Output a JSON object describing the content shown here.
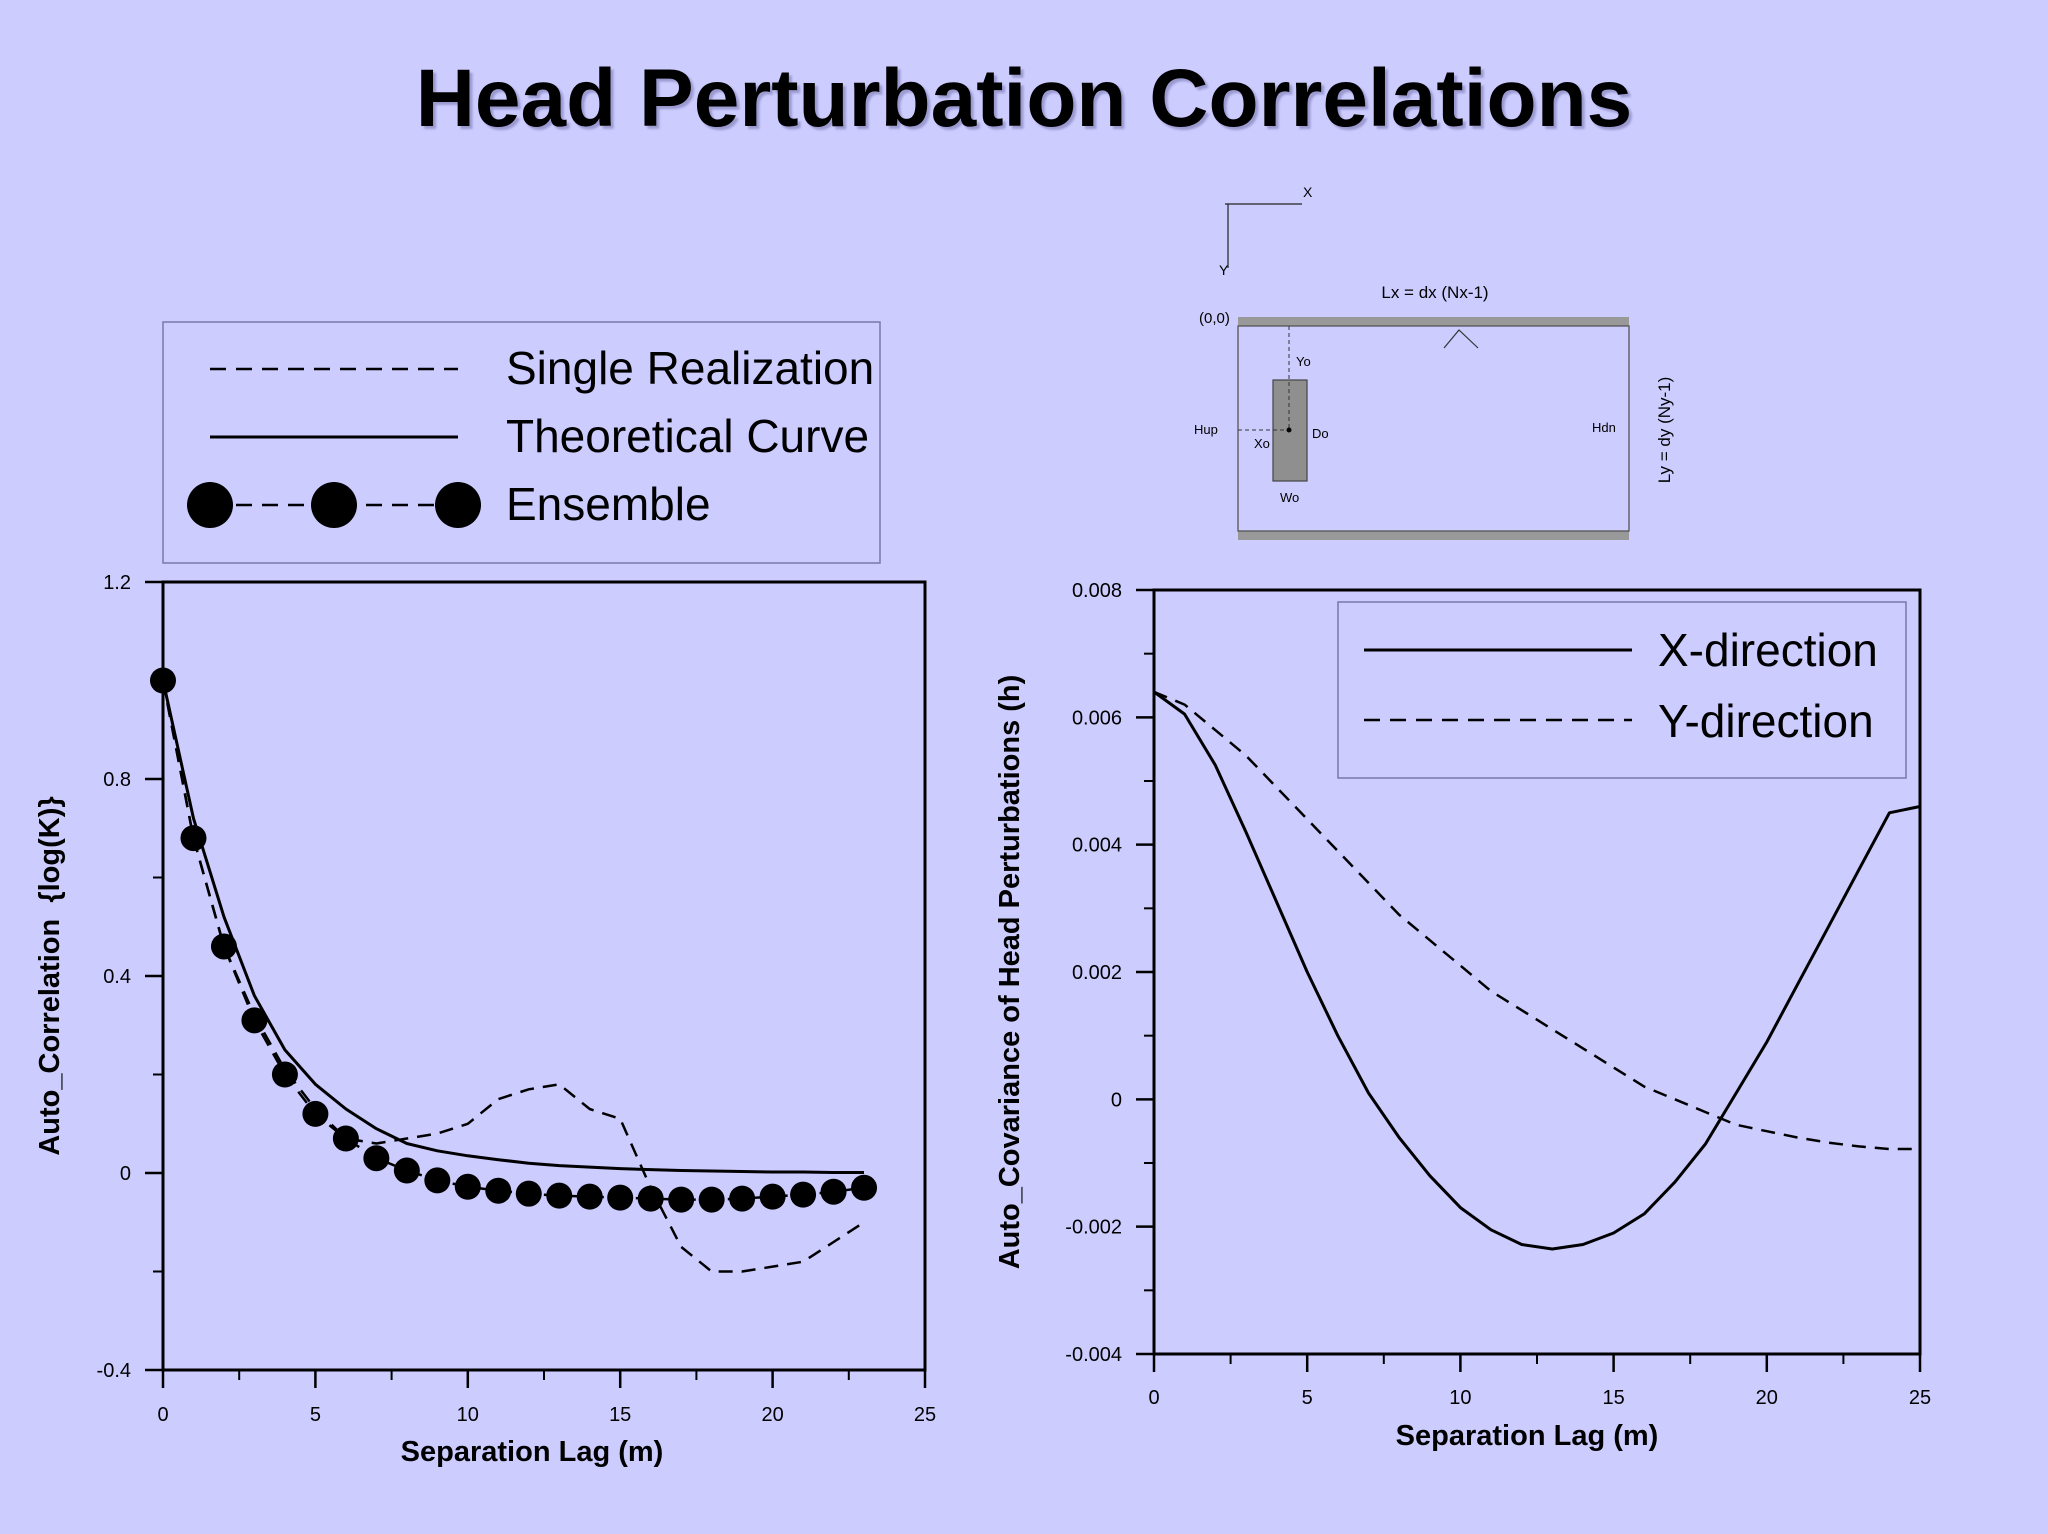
{
  "title": "Head Perturbation Correlations",
  "diagram": {
    "axis_x": "X",
    "axis_y": "Y",
    "length_x": "Lx = dx (Nx-1)",
    "length_y": "Ly = dy (Ny-1)",
    "origin": "(0,0)",
    "yo": "Yo",
    "hup": "Hup",
    "xo": "Xo",
    "do": "Do",
    "hdn": "Hdn",
    "wo": "Wo"
  },
  "chart_data": [
    {
      "type": "line",
      "xlabel": "Separation Lag (m)",
      "ylabel": "Auto_Correlation  {log(K)}",
      "xlim": [
        0,
        25
      ],
      "ylim": [
        -0.4,
        1.2
      ],
      "xticks": [
        "0",
        "5",
        "10",
        "15",
        "20",
        "25"
      ],
      "yticks": [
        "-0.4",
        "0",
        "0.4",
        "0.8",
        "1.2"
      ],
      "legend_position": "top-outside",
      "series": [
        {
          "name": "Single Realization",
          "style": "dashed",
          "x": [
            0,
            1,
            2,
            3,
            4,
            5,
            6,
            7,
            8,
            9,
            10,
            11,
            12,
            13,
            14,
            15,
            16,
            17,
            18,
            19,
            20,
            21,
            22,
            23
          ],
          "y": [
            1.0,
            0.68,
            0.46,
            0.32,
            0.21,
            0.13,
            0.07,
            0.06,
            0.07,
            0.08,
            0.1,
            0.15,
            0.17,
            0.18,
            0.13,
            0.11,
            -0.03,
            -0.15,
            -0.2,
            -0.2,
            -0.19,
            -0.18,
            -0.14,
            -0.1
          ]
        },
        {
          "name": "Theoretical Curve",
          "style": "solid",
          "x": [
            0,
            1,
            2,
            3,
            4,
            5,
            6,
            7,
            8,
            9,
            10,
            11,
            12,
            13,
            14,
            15,
            16,
            17,
            18,
            19,
            20,
            21,
            22,
            23
          ],
          "y": [
            1.0,
            0.72,
            0.52,
            0.36,
            0.25,
            0.18,
            0.13,
            0.09,
            0.06,
            0.045,
            0.035,
            0.027,
            0.02,
            0.015,
            0.012,
            0.009,
            0.007,
            0.005,
            0.004,
            0.003,
            0.002,
            0.002,
            0.001,
            0.001
          ]
        },
        {
          "name": "Ensemble",
          "style": "dashed-markers",
          "x": [
            0,
            1,
            2,
            3,
            4,
            5,
            6,
            7,
            8,
            9,
            10,
            11,
            12,
            13,
            14,
            15,
            16,
            17,
            18,
            19,
            20,
            21,
            22,
            23
          ],
          "y": [
            1.0,
            0.68,
            0.46,
            0.31,
            0.2,
            0.12,
            0.07,
            0.03,
            0.005,
            -0.015,
            -0.028,
            -0.036,
            -0.042,
            -0.046,
            -0.048,
            -0.05,
            -0.052,
            -0.054,
            -0.054,
            -0.052,
            -0.048,
            -0.044,
            -0.038,
            -0.03
          ]
        }
      ]
    },
    {
      "type": "line",
      "xlabel": "Separation Lag (m)",
      "ylabel": "Auto_Covariance of Head Perturbations (h)",
      "xlim": [
        0,
        25
      ],
      "ylim": [
        -0.004,
        0.008
      ],
      "xticks": [
        "0",
        "5",
        "10",
        "15",
        "20",
        "25"
      ],
      "yticks": [
        "-0.004",
        "-0.002",
        "0",
        "0.002",
        "0.004",
        "0.006",
        "0.008"
      ],
      "legend_position": "top-right",
      "series": [
        {
          "name": "X-direction",
          "style": "solid",
          "x": [
            0,
            1,
            2,
            3,
            4,
            5,
            6,
            7,
            8,
            9,
            10,
            11,
            12,
            13,
            14,
            15,
            16,
            17,
            18,
            19,
            20,
            21,
            22,
            23,
            24,
            25
          ],
          "y": [
            0.0064,
            0.00605,
            0.00525,
            0.0042,
            0.0031,
            0.002,
            0.001,
            0.0001,
            -0.0006,
            -0.0012,
            -0.0017,
            -0.00205,
            -0.00228,
            -0.00235,
            -0.00228,
            -0.0021,
            -0.0018,
            -0.0013,
            -0.0007,
            0.0001,
            0.0009,
            0.0018,
            0.0027,
            0.0036,
            0.0045,
            0.0046
          ]
        },
        {
          "name": "Y-direction",
          "style": "dashed",
          "x": [
            0,
            1,
            2,
            3,
            4,
            5,
            6,
            7,
            8,
            9,
            10,
            11,
            12,
            13,
            14,
            15,
            16,
            17,
            18,
            19,
            20,
            21,
            22,
            23,
            24,
            25
          ],
          "y": [
            0.0064,
            0.0062,
            0.0058,
            0.0054,
            0.0049,
            0.0044,
            0.0039,
            0.0034,
            0.0029,
            0.0025,
            0.0021,
            0.0017,
            0.0014,
            0.0011,
            0.0008,
            0.0005,
            0.0002,
            0.0,
            -0.0002,
            -0.0004,
            -0.0005,
            -0.0006,
            -0.00068,
            -0.00074,
            -0.00078,
            -0.00078
          ]
        }
      ]
    }
  ]
}
